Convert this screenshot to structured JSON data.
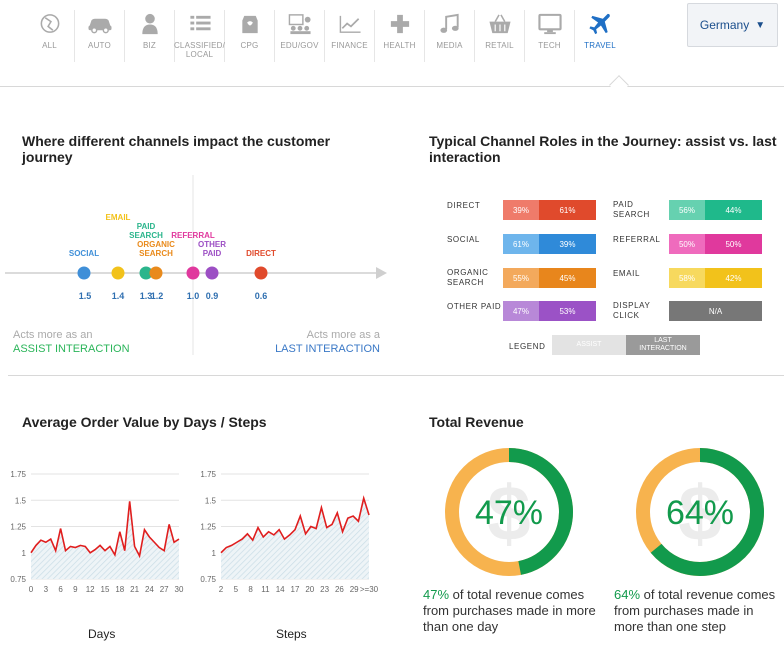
{
  "nav": {
    "items": [
      {
        "label": "ALL",
        "icon": "globe-icon"
      },
      {
        "label": "AUTO",
        "icon": "car-icon"
      },
      {
        "label": "BIZ",
        "icon": "businessman-icon"
      },
      {
        "label": "CLASSIFIED/ LOCAL",
        "icon": "list-icon"
      },
      {
        "label": "CPG",
        "icon": "package-icon"
      },
      {
        "label": "EDU/GOV",
        "icon": "classroom-icon"
      },
      {
        "label": "FINANCE",
        "icon": "trend-chart-icon"
      },
      {
        "label": "HEALTH",
        "icon": "plus-cross-icon"
      },
      {
        "label": "MEDIA",
        "icon": "music-note-icon"
      },
      {
        "label": "RETAIL",
        "icon": "shopping-basket-icon"
      },
      {
        "label": "TECH",
        "icon": "monitor-icon"
      },
      {
        "label": "TRAVEL",
        "icon": "airplane-icon"
      }
    ],
    "active": "TRAVEL",
    "country": "Germany",
    "country_arrow": "▼"
  },
  "channels_section": {
    "title": "Where different channels impact the customer journey",
    "assist_note": {
      "line1": "Acts more as an",
      "line2": "ASSIST INTERACTION"
    },
    "last_note": {
      "line1": "Acts more as a",
      "line2": "LAST INTERACTION"
    }
  },
  "channel_points": [
    {
      "name": "SOCIAL",
      "value": "1.5",
      "color": "#3f8fd8"
    },
    {
      "name": "EMAIL",
      "value": "1.4",
      "color": "#f2c21b"
    },
    {
      "name": "PAID SEARCH",
      "value": "1.3",
      "color": "#2bb58c"
    },
    {
      "name": "ORGANIC SEARCH",
      "value": "1.2",
      "color": "#e98a1b"
    },
    {
      "name": "REFERRAL",
      "value": "1.0",
      "color": "#e0389d"
    },
    {
      "name": "OTHER PAID",
      "value": "0.9",
      "color": "#9c4fc4"
    },
    {
      "name": "DIRECT",
      "value": "0.6",
      "color": "#e04a2c"
    }
  ],
  "roles_section": {
    "title": "Typical Channel Roles in the Journey: assist vs. last interaction",
    "roles": [
      {
        "name": "DIRECT",
        "assist": "39%",
        "last": "61%",
        "assist_color": "#ef7b6a",
        "last_color": "#e04a2c"
      },
      {
        "name": "PAID SEARCH",
        "assist": "56%",
        "last": "44%",
        "assist_color": "#66d1b0",
        "last_color": "#1fb98b"
      },
      {
        "name": "SOCIAL",
        "assist": "61%",
        "last": "39%",
        "assist_color": "#6eb5ec",
        "last_color": "#2f8ad9"
      },
      {
        "name": "REFERRAL",
        "assist": "50%",
        "last": "50%",
        "assist_color": "#ef6bbd",
        "last_color": "#e0399d"
      },
      {
        "name": "ORGANIC SEARCH",
        "assist": "55%",
        "last": "45%",
        "assist_color": "#f3a95c",
        "last_color": "#e8861c"
      },
      {
        "name": "EMAIL",
        "assist": "58%",
        "last": "42%",
        "assist_color": "#f7d95e",
        "last_color": "#f2c21b"
      },
      {
        "name": "OTHER PAID",
        "assist": "47%",
        "last": "53%",
        "assist_color": "#b888d8",
        "last_color": "#9b52c6"
      },
      {
        "name": "DISPLAY CLICK",
        "na": "N/A",
        "na_color": "#777777"
      }
    ],
    "legend": {
      "label": "LEGEND",
      "assist": "ASSIST",
      "last": "LAST INTERACTION"
    }
  },
  "aov_section": {
    "title": "Average Order Value by Days / Steps",
    "days_chart": {
      "xlabel": "Days",
      "x_ticks": [
        "0",
        "3",
        "6",
        "9",
        "12",
        "15",
        "18",
        "21",
        "24",
        "27",
        "30"
      ],
      "y_ticks": [
        "1.75",
        "1.5",
        "1.25",
        "1",
        "0.75"
      ]
    },
    "steps_chart": {
      "xlabel": "Steps",
      "x_ticks": [
        "2",
        "5",
        "8",
        "11",
        "14",
        "17",
        "20",
        "23",
        "26",
        "29",
        ">=30"
      ],
      "y_ticks": [
        "1.75",
        "1.5",
        "1.25",
        "1",
        "0.75"
      ]
    }
  },
  "chart_data": [
    {
      "type": "line",
      "xlabel": "Days",
      "ylim": [
        0.75,
        1.75
      ],
      "x": [
        0,
        1,
        2,
        3,
        4,
        5,
        6,
        7,
        8,
        9,
        10,
        11,
        12,
        13,
        14,
        15,
        16,
        17,
        18,
        19,
        20,
        21,
        22,
        23,
        24,
        25,
        26,
        27,
        28,
        29,
        30
      ],
      "values": [
        1.0,
        1.07,
        1.12,
        1.1,
        1.13,
        1.02,
        1.23,
        1.02,
        1.06,
        1.05,
        1.07,
        1.06,
        1.0,
        1.03,
        1.07,
        1.02,
        1.06,
        0.98,
        1.2,
        1.02,
        1.49,
        1.06,
        0.97,
        1.22,
        1.15,
        1.1,
        1.05,
        1.02,
        1.27,
        1.1,
        1.13
      ],
      "line_color": "#e01e1e"
    },
    {
      "type": "line",
      "xlabel": "Steps",
      "ylim": [
        0.75,
        1.75
      ],
      "x": [
        2,
        3,
        4,
        5,
        6,
        7,
        8,
        9,
        10,
        11,
        12,
        13,
        14,
        15,
        16,
        17,
        18,
        19,
        20,
        21,
        22,
        23,
        24,
        25,
        26,
        27,
        28,
        29,
        30
      ],
      "values": [
        1.0,
        1.05,
        1.07,
        1.1,
        1.13,
        1.18,
        1.12,
        1.24,
        1.15,
        1.2,
        1.17,
        1.22,
        1.13,
        1.17,
        1.22,
        1.35,
        1.18,
        1.25,
        1.23,
        1.43,
        1.24,
        1.27,
        1.38,
        1.2,
        1.33,
        1.35,
        1.3,
        1.52,
        1.36
      ],
      "line_color": "#e01e1e"
    },
    {
      "type": "pie",
      "title": "Total Revenue",
      "categories": [
        "more than one day",
        "other"
      ],
      "values": [
        47,
        53
      ],
      "colors": [
        "#129a4c",
        "#f7b34e"
      ]
    },
    {
      "type": "pie",
      "categories": [
        "more than one step",
        "other"
      ],
      "values": [
        64,
        36
      ],
      "colors": [
        "#129a4c",
        "#f7b34e"
      ]
    }
  ],
  "revenue_section": {
    "title": "Total Revenue",
    "donuts": [
      {
        "pct": "47%",
        "caption": " of total revenue comes from purchases made in more than one day"
      },
      {
        "pct": "64%",
        "caption": " of total revenue comes from purchases made in more than one step"
      }
    ]
  }
}
